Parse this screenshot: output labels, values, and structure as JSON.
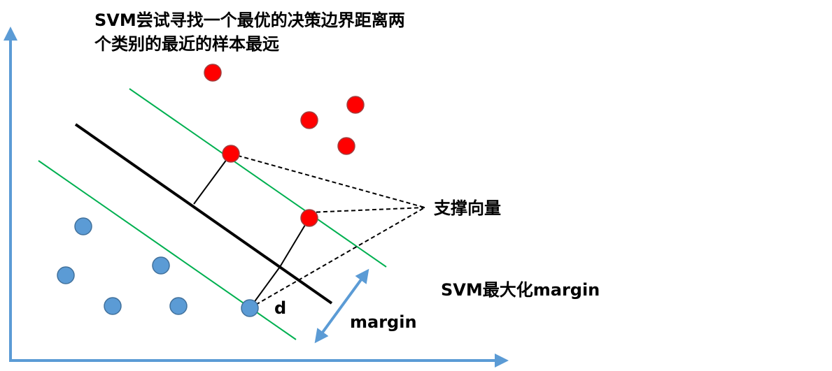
{
  "title": [
    "SVM尝试寻找一个最优的决策边界距离两",
    "个类别的最近的样本最远"
  ],
  "labels": {
    "support_vectors": "支撑向量",
    "svm_max": "SVM最大化margin",
    "margin": "margin",
    "d": "d"
  }
}
